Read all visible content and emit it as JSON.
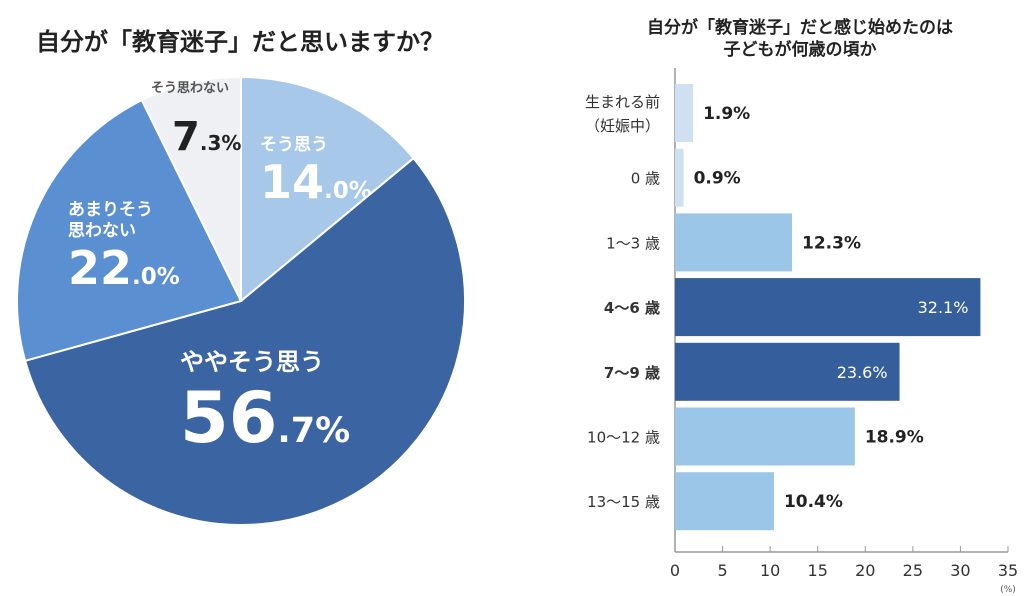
{
  "chart_data": [
    {
      "type": "pie",
      "title": "自分が「教育迷子」だと思いますか？",
      "slices": [
        {
          "label": "そう思う",
          "value": 14.0,
          "big": "14",
          "small": ".0%",
          "color": "#a8c8ea",
          "text_color": "#ffffff"
        },
        {
          "label": "ややそう思う",
          "value": 56.7,
          "big": "56",
          "small": ".7%",
          "color": "#3a64a2",
          "text_color": "#ffffff"
        },
        {
          "label": "あまりそう思わない",
          "label_lines": [
            "あまりそう",
            "思わない"
          ],
          "value": 22.0,
          "big": "22",
          "small": ".0%",
          "color": "#5a8fd1",
          "text_color": "#ffffff"
        },
        {
          "label": "そう思わない",
          "value": 7.3,
          "big": "7",
          "small": ".3%",
          "color": "#eef0f3",
          "text_color": "#222222"
        }
      ]
    },
    {
      "type": "bar",
      "orientation": "horizontal",
      "title_lines": [
        "自分が「教育迷子」だと感じ始めたのは",
        "子どもが何歳の頃か"
      ],
      "categories": [
        [
          "生まれる前",
          "（妊娠中）"
        ],
        [
          "0 歳"
        ],
        [
          "1〜3 歳"
        ],
        [
          "4〜6 歳"
        ],
        [
          "7〜9 歳"
        ],
        [
          "10〜12 歳"
        ],
        [
          "13〜15 歳"
        ]
      ],
      "values": [
        1.9,
        0.9,
        12.3,
        32.1,
        23.6,
        18.9,
        10.4
      ],
      "value_labels": [
        "1.9%",
        "0.9%",
        "12.3%",
        "32.1%",
        "23.6%",
        "18.9%",
        "10.4%"
      ],
      "colors": [
        "#cfe0f2",
        "#cfe0f2",
        "#9cc6e8",
        "#355f9c",
        "#355f9c",
        "#9cc6e8",
        "#9cc6e8"
      ],
      "highlight": [
        false,
        false,
        false,
        true,
        true,
        false,
        false
      ],
      "xlim": [
        0,
        35
      ],
      "xticks": [
        0,
        5,
        10,
        15,
        20,
        25,
        30,
        35
      ],
      "xunit": "(%)"
    }
  ]
}
